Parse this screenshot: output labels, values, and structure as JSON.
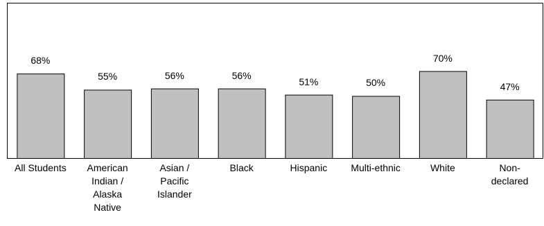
{
  "chart_data": {
    "type": "bar",
    "categories": [
      "All Students",
      "American Indian / Alaska Native",
      "Asian / Pacific Islander",
      "Black",
      "Hispanic",
      "Multi-ethnic",
      "White",
      "Non-declared"
    ],
    "values": [
      68,
      55,
      56,
      56,
      51,
      50,
      70,
      47
    ],
    "value_labels": [
      "68%",
      "55%",
      "56%",
      "56%",
      "51%",
      "50%",
      "70%",
      "47%"
    ],
    "color": "#c0c0c0",
    "ylim": [
      0,
      125
    ]
  }
}
